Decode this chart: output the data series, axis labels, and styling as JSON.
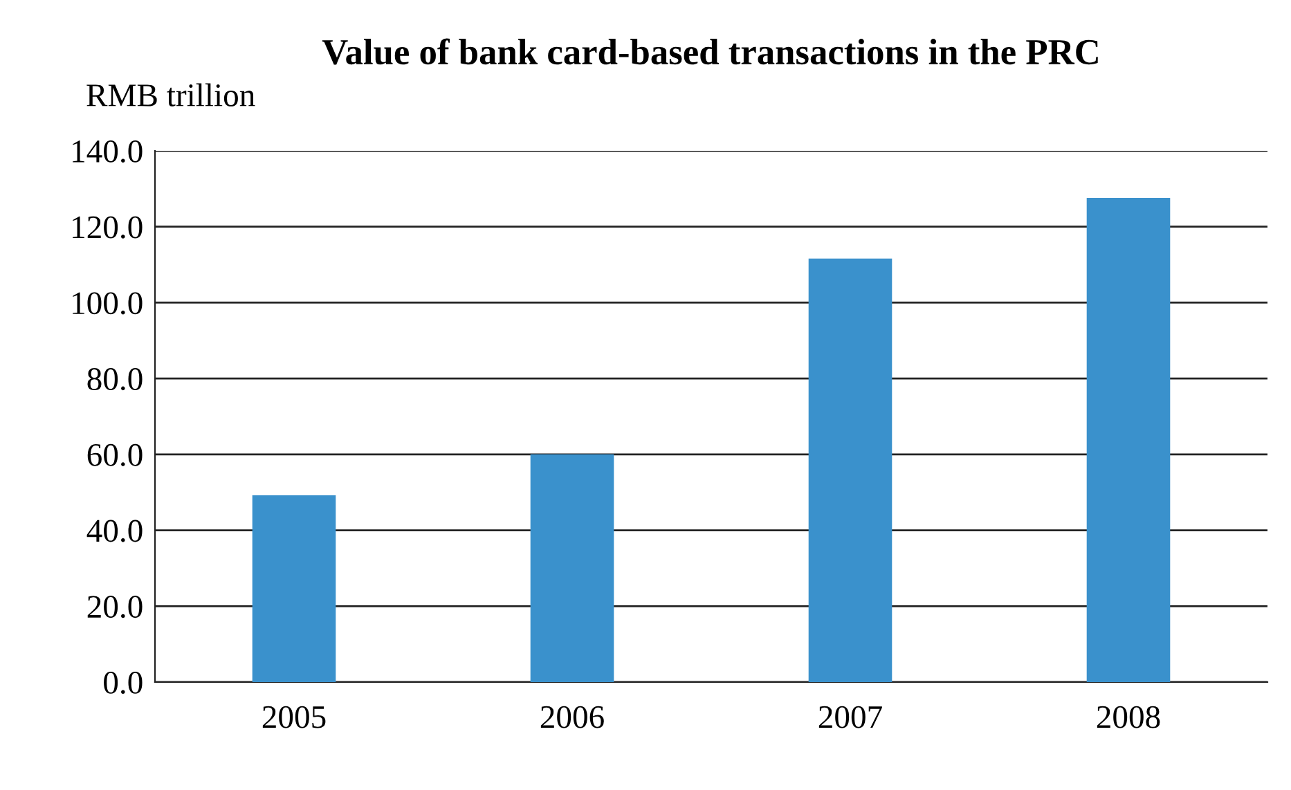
{
  "chart_data": {
    "type": "bar",
    "title": "Value of bank card-based transactions in the PRC",
    "ylabel": "RMB trillion",
    "categories": [
      "2005",
      "2006",
      "2007",
      "2008"
    ],
    "values": [
      49.2,
      60.0,
      111.6,
      127.6
    ],
    "color": "#3a91cc",
    "ylim": [
      0,
      140
    ],
    "yticks": [
      {
        "value": 0,
        "label": "0.0"
      },
      {
        "value": 20,
        "label": "20.0"
      },
      {
        "value": 40,
        "label": "40.0"
      },
      {
        "value": 60,
        "label": "60.0"
      },
      {
        "value": 80,
        "label": "80.0"
      },
      {
        "value": 100,
        "label": "100.0"
      },
      {
        "value": 120,
        "label": "120.0"
      },
      {
        "value": 140,
        "label": "140.0"
      }
    ],
    "grid": "y"
  }
}
